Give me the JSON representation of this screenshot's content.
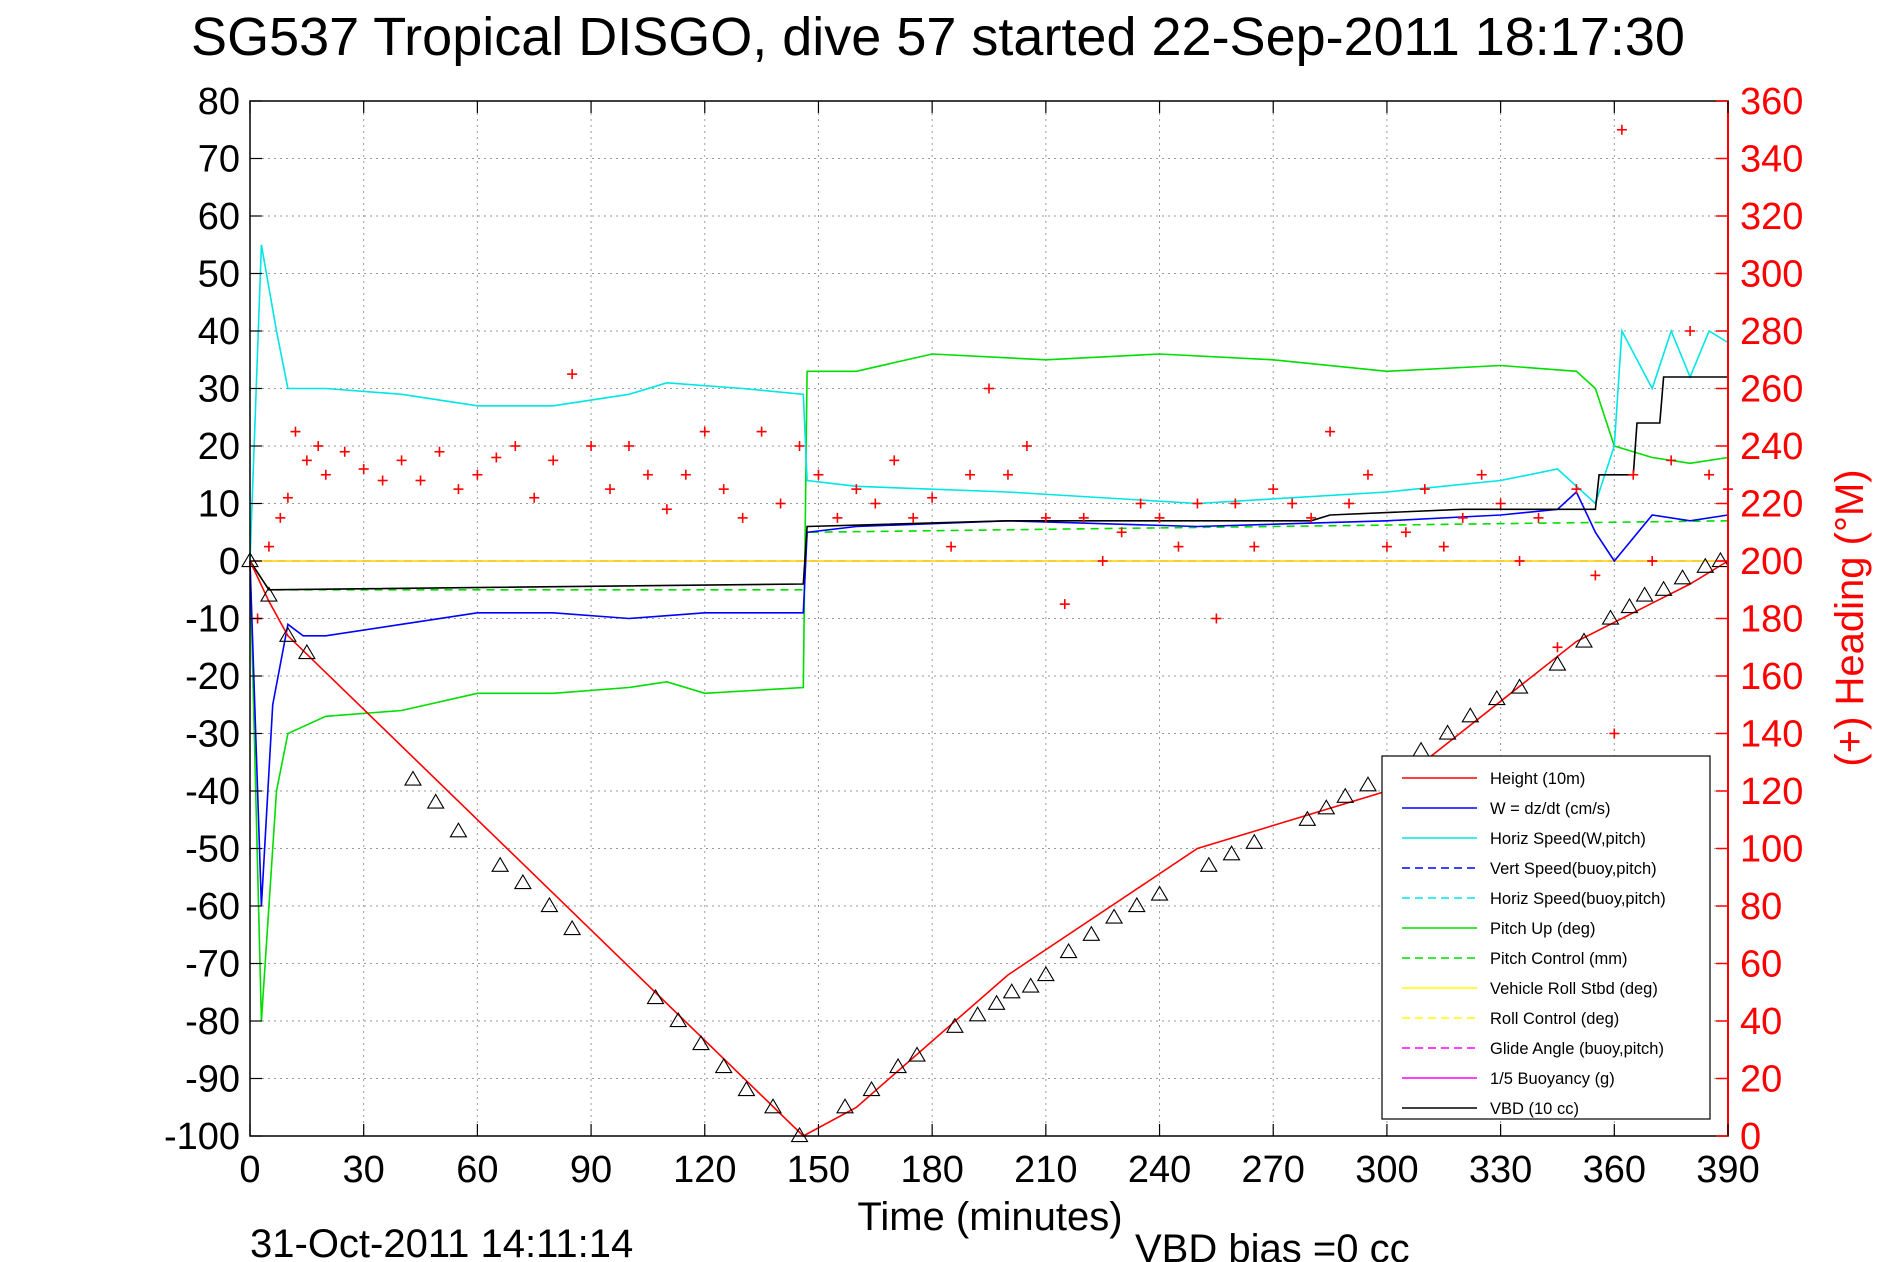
{
  "chart_data": {
    "type": "line",
    "title": "SG537 Tropical DISGO, dive 57 started 22-Sep-2011 18:17:30",
    "xlabel": "Time (minutes)",
    "ylabel_right": "(+) Heading (°M)",
    "footer_date": "31-Oct-2011 14:11:14",
    "footer_note": "VBD bias =0 cc",
    "xlim": [
      0,
      390
    ],
    "ylim_left": [
      -100,
      80
    ],
    "ylim_right": [
      0,
      360
    ],
    "grid": true,
    "legend_position": "bottom-right",
    "xticks": [
      "0",
      "30",
      "60",
      "90",
      "120",
      "150",
      "180",
      "210",
      "240",
      "270",
      "300",
      "330",
      "360",
      "390"
    ],
    "yticks_left": [
      "80",
      "70",
      "60",
      "50",
      "40",
      "30",
      "20",
      "10",
      "0",
      "-10",
      "-20",
      "-30",
      "-40",
      "-50",
      "-60",
      "-70",
      "-80",
      "-90",
      "-100"
    ],
    "yticks_right": [
      "360",
      "340",
      "320",
      "300",
      "280",
      "260",
      "240",
      "220",
      "200",
      "180",
      "160",
      "140",
      "120",
      "100",
      "80",
      "60",
      "40",
      "20",
      "0"
    ],
    "colors": {
      "height": "#ff0000",
      "w": "#0000ff",
      "horiz_speed": "#00e5e5",
      "vert_speed_buoy": "#0000ff",
      "horiz_speed_buoy": "#00e5e5",
      "pitch": "#00dd00",
      "pitch_control": "#00dd00",
      "roll": "#ffff00",
      "roll_control": "#ffff00",
      "glide_angle": "#ff00ff",
      "buoyancy": "#ff00ff",
      "vbd": "#000000",
      "heading": "#ff0000",
      "right_axis": "#ff0000"
    },
    "series": [
      {
        "name": "Height (10m)",
        "style": "solid",
        "color": "#ff0000",
        "x": [
          0,
          5,
          10,
          146,
          160,
          200,
          250,
          300,
          350,
          380,
          390
        ],
        "y": [
          0,
          -7,
          -13,
          -100,
          -95,
          -72,
          -50,
          -40,
          -14,
          -4,
          0
        ]
      },
      {
        "name": "W = dz/dt (cm/s)",
        "style": "solid",
        "color": "#0000ff",
        "x": [
          0,
          3,
          6,
          10,
          14,
          20,
          40,
          60,
          80,
          100,
          120,
          146,
          147,
          160,
          200,
          250,
          300,
          330,
          345,
          350,
          355,
          360,
          370,
          380,
          390
        ],
        "y": [
          0,
          -60,
          -25,
          -11,
          -13,
          -13,
          -11,
          -9,
          -9,
          -10,
          -9,
          -9,
          5,
          6,
          7,
          6,
          7,
          8,
          9,
          12,
          5,
          0,
          8,
          7,
          8
        ]
      },
      {
        "name": "Horiz Speed(W,pitch)",
        "style": "solid",
        "color": "#00e5e5",
        "x": [
          0,
          3,
          7,
          10,
          20,
          40,
          60,
          80,
          100,
          110,
          130,
          146,
          147,
          160,
          200,
          250,
          300,
          330,
          345,
          355,
          360,
          362,
          370,
          375,
          380,
          385,
          390
        ],
        "y": [
          0,
          55,
          40,
          30,
          30,
          29,
          27,
          27,
          29,
          31,
          30,
          29,
          14,
          13,
          12,
          10,
          12,
          14,
          16,
          10,
          20,
          40,
          30,
          40,
          32,
          40,
          38
        ]
      },
      {
        "name": "Vert Speed(buoy,pitch)",
        "style": "dashed",
        "color": "#0000ff",
        "x": [
          0,
          390
        ],
        "y": [
          0,
          0
        ]
      },
      {
        "name": "Horiz Speed(buoy,pitch)",
        "style": "dashed",
        "color": "#00e5e5",
        "x": [
          0,
          390
        ],
        "y": [
          0,
          0
        ]
      },
      {
        "name": "Pitch Up (deg)",
        "style": "solid",
        "color": "#00dd00",
        "x": [
          0,
          3,
          7,
          10,
          20,
          40,
          60,
          80,
          100,
          110,
          120,
          146,
          147,
          160,
          180,
          210,
          240,
          270,
          300,
          330,
          350,
          355,
          360,
          370,
          380,
          390
        ],
        "y": [
          0,
          -80,
          -40,
          -30,
          -27,
          -26,
          -23,
          -23,
          -22,
          -21,
          -23,
          -22,
          33,
          33,
          36,
          35,
          36,
          35,
          33,
          34,
          33,
          30,
          20,
          18,
          17,
          18
        ]
      },
      {
        "name": "Pitch Control (mm)",
        "style": "dashed",
        "color": "#00dd00",
        "x": [
          0,
          5,
          146,
          147,
          390
        ],
        "y": [
          0,
          -5,
          -5,
          5,
          7
        ]
      },
      {
        "name": "Vehicle Roll Stbd (deg)",
        "style": "solid",
        "color": "#ffff00",
        "x": [
          0,
          10,
          50,
          100,
          146,
          150,
          200,
          250,
          300,
          350,
          390
        ],
        "y": [
          0,
          0,
          0,
          0,
          0,
          0,
          0,
          0,
          0,
          0,
          0
        ]
      },
      {
        "name": "Roll Control (deg)",
        "style": "dashed",
        "color": "#ffff00",
        "x": [
          0,
          390
        ],
        "y": [
          0,
          0
        ]
      },
      {
        "name": "Glide Angle (buoy,pitch)",
        "style": "dashed",
        "color": "#ff00ff",
        "x": [
          0,
          390
        ],
        "y": [
          0,
          0
        ]
      },
      {
        "name": "1/5 Buoyancy (g)",
        "style": "solid",
        "color": "#ff00ff",
        "x": [
          0,
          390
        ],
        "y": [
          0,
          0
        ]
      },
      {
        "name": "VBD (10 cc)",
        "style": "solid",
        "color": "#000000",
        "x": [
          0,
          5,
          146,
          147,
          200,
          250,
          280,
          285,
          320,
          355,
          356,
          365,
          366,
          372,
          373,
          390
        ],
        "y": [
          0,
          -5,
          -4,
          6,
          7,
          7,
          7,
          8,
          9,
          9,
          15,
          15,
          24,
          24,
          32,
          32
        ]
      }
    ],
    "heading": {
      "name": "Heading (°M)",
      "marker": "+",
      "color": "#ff0000",
      "axis": "right",
      "x": [
        2,
        5,
        8,
        10,
        12,
        15,
        18,
        20,
        25,
        30,
        35,
        40,
        45,
        50,
        55,
        60,
        65,
        70,
        75,
        80,
        85,
        90,
        95,
        100,
        105,
        110,
        115,
        120,
        125,
        130,
        135,
        140,
        145,
        150,
        155,
        160,
        165,
        170,
        175,
        180,
        185,
        190,
        195,
        200,
        205,
        210,
        215,
        220,
        225,
        230,
        235,
        240,
        245,
        250,
        255,
        260,
        265,
        270,
        275,
        280,
        285,
        290,
        295,
        300,
        305,
        310,
        315,
        320,
        325,
        330,
        335,
        340,
        345,
        350,
        355,
        360,
        362,
        365,
        370,
        375,
        380,
        385,
        390
      ],
      "y": [
        180,
        205,
        215,
        222,
        245,
        235,
        240,
        230,
        238,
        232,
        228,
        235,
        228,
        238,
        225,
        230,
        236,
        240,
        222,
        235,
        265,
        240,
        225,
        240,
        230,
        218,
        230,
        245,
        225,
        215,
        245,
        220,
        240,
        230,
        215,
        225,
        220,
        235,
        215,
        222,
        205,
        230,
        260,
        230,
        240,
        215,
        185,
        215,
        200,
        210,
        220,
        215,
        205,
        220,
        180,
        220,
        205,
        225,
        220,
        215,
        245,
        220,
        230,
        205,
        210,
        225,
        205,
        215,
        230,
        220,
        200,
        215,
        170,
        225,
        195,
        140,
        350,
        230,
        200,
        235,
        280,
        230,
        225
      ]
    },
    "vbd_markers": {
      "marker": "triangle",
      "color": "#000000",
      "x": [
        0,
        5,
        10,
        15,
        43,
        49,
        55,
        66,
        72,
        79,
        85,
        107,
        113,
        119,
        125,
        131,
        138,
        145,
        157,
        164,
        171,
        176,
        186,
        192,
        197,
        201,
        206,
        210,
        216,
        222,
        228,
        234,
        240,
        253,
        259,
        265,
        279,
        284,
        289,
        295,
        309,
        316,
        322,
        329,
        335,
        345,
        352,
        359,
        364,
        368,
        373,
        378,
        384,
        388
      ],
      "y": [
        0,
        -6,
        -13,
        -16,
        -38,
        -42,
        -47,
        -53,
        -56,
        -60,
        -64,
        -76,
        -80,
        -84,
        -88,
        -92,
        -95,
        -100,
        -95,
        -92,
        -88,
        -86,
        -81,
        -79,
        -77,
        -75,
        -74,
        -72,
        -68,
        -65,
        -62,
        -60,
        -58,
        -53,
        -51,
        -49,
        -45,
        -43,
        -41,
        -39,
        -33,
        -30,
        -27,
        -24,
        -22,
        -18,
        -14,
        -10,
        -8,
        -6,
        -5,
        -3,
        -1,
        0
      ]
    }
  }
}
